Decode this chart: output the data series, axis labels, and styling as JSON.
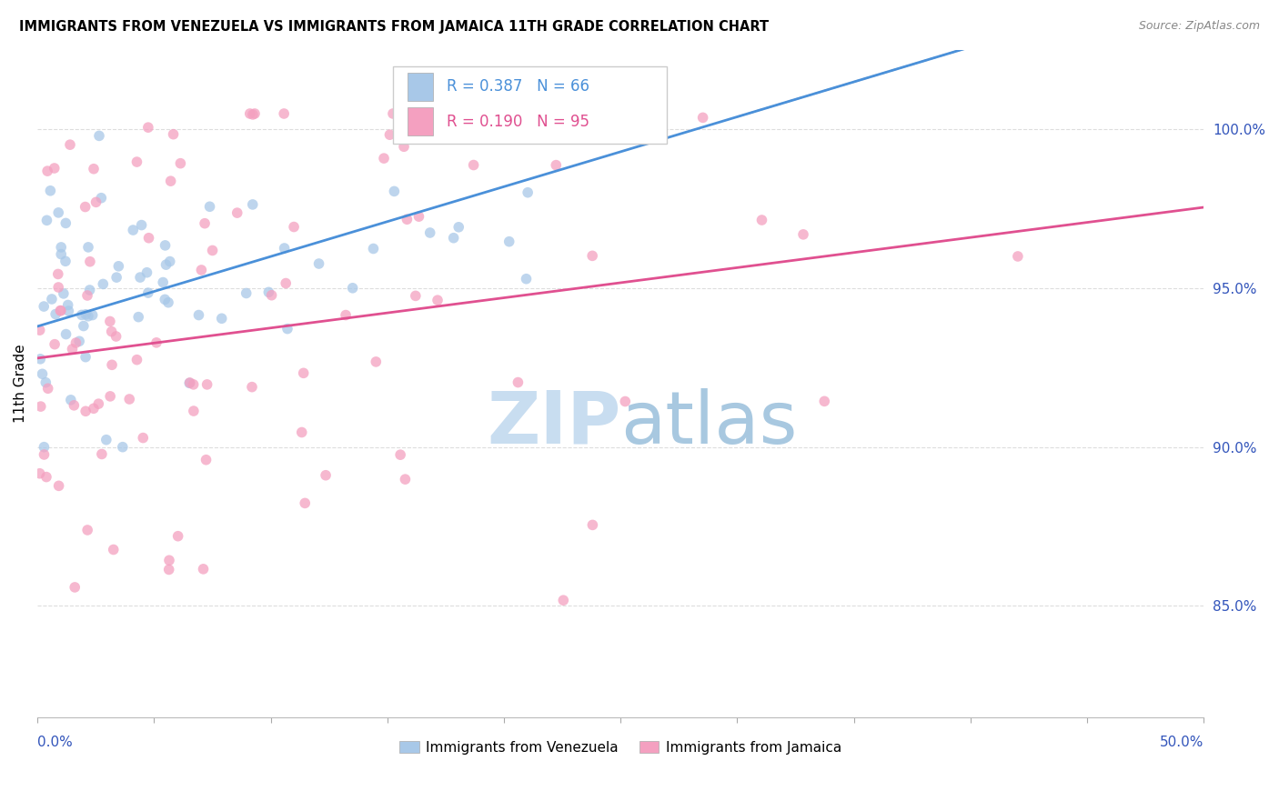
{
  "title": "IMMIGRANTS FROM VENEZUELA VS IMMIGRANTS FROM JAMAICA 11TH GRADE CORRELATION CHART",
  "source": "Source: ZipAtlas.com",
  "ylabel": "11th Grade",
  "right_yticks": [
    "85.0%",
    "90.0%",
    "95.0%",
    "100.0%"
  ],
  "right_ytick_vals": [
    0.85,
    0.9,
    0.95,
    1.0
  ],
  "xlim": [
    0.0,
    0.5
  ],
  "ylim": [
    0.815,
    1.025
  ],
  "legend_r1_text": "R = 0.387   N = 66",
  "legend_r2_text": "R = 0.190   N = 95",
  "color_venezuela": "#a8c8e8",
  "color_jamaica": "#f4a0c0",
  "color_line_venezuela": "#4a90d9",
  "color_line_jamaica": "#e05090",
  "color_dashed": "#bbbbbb",
  "color_right_axis": "#3355bb",
  "color_grid": "#dddddd",
  "watermark_zip_color": "#c8ddf0",
  "watermark_atlas_color": "#a8c8e0",
  "ven_slope": 0.22,
  "ven_intercept": 0.938,
  "jam_slope": 0.095,
  "jam_intercept": 0.928
}
